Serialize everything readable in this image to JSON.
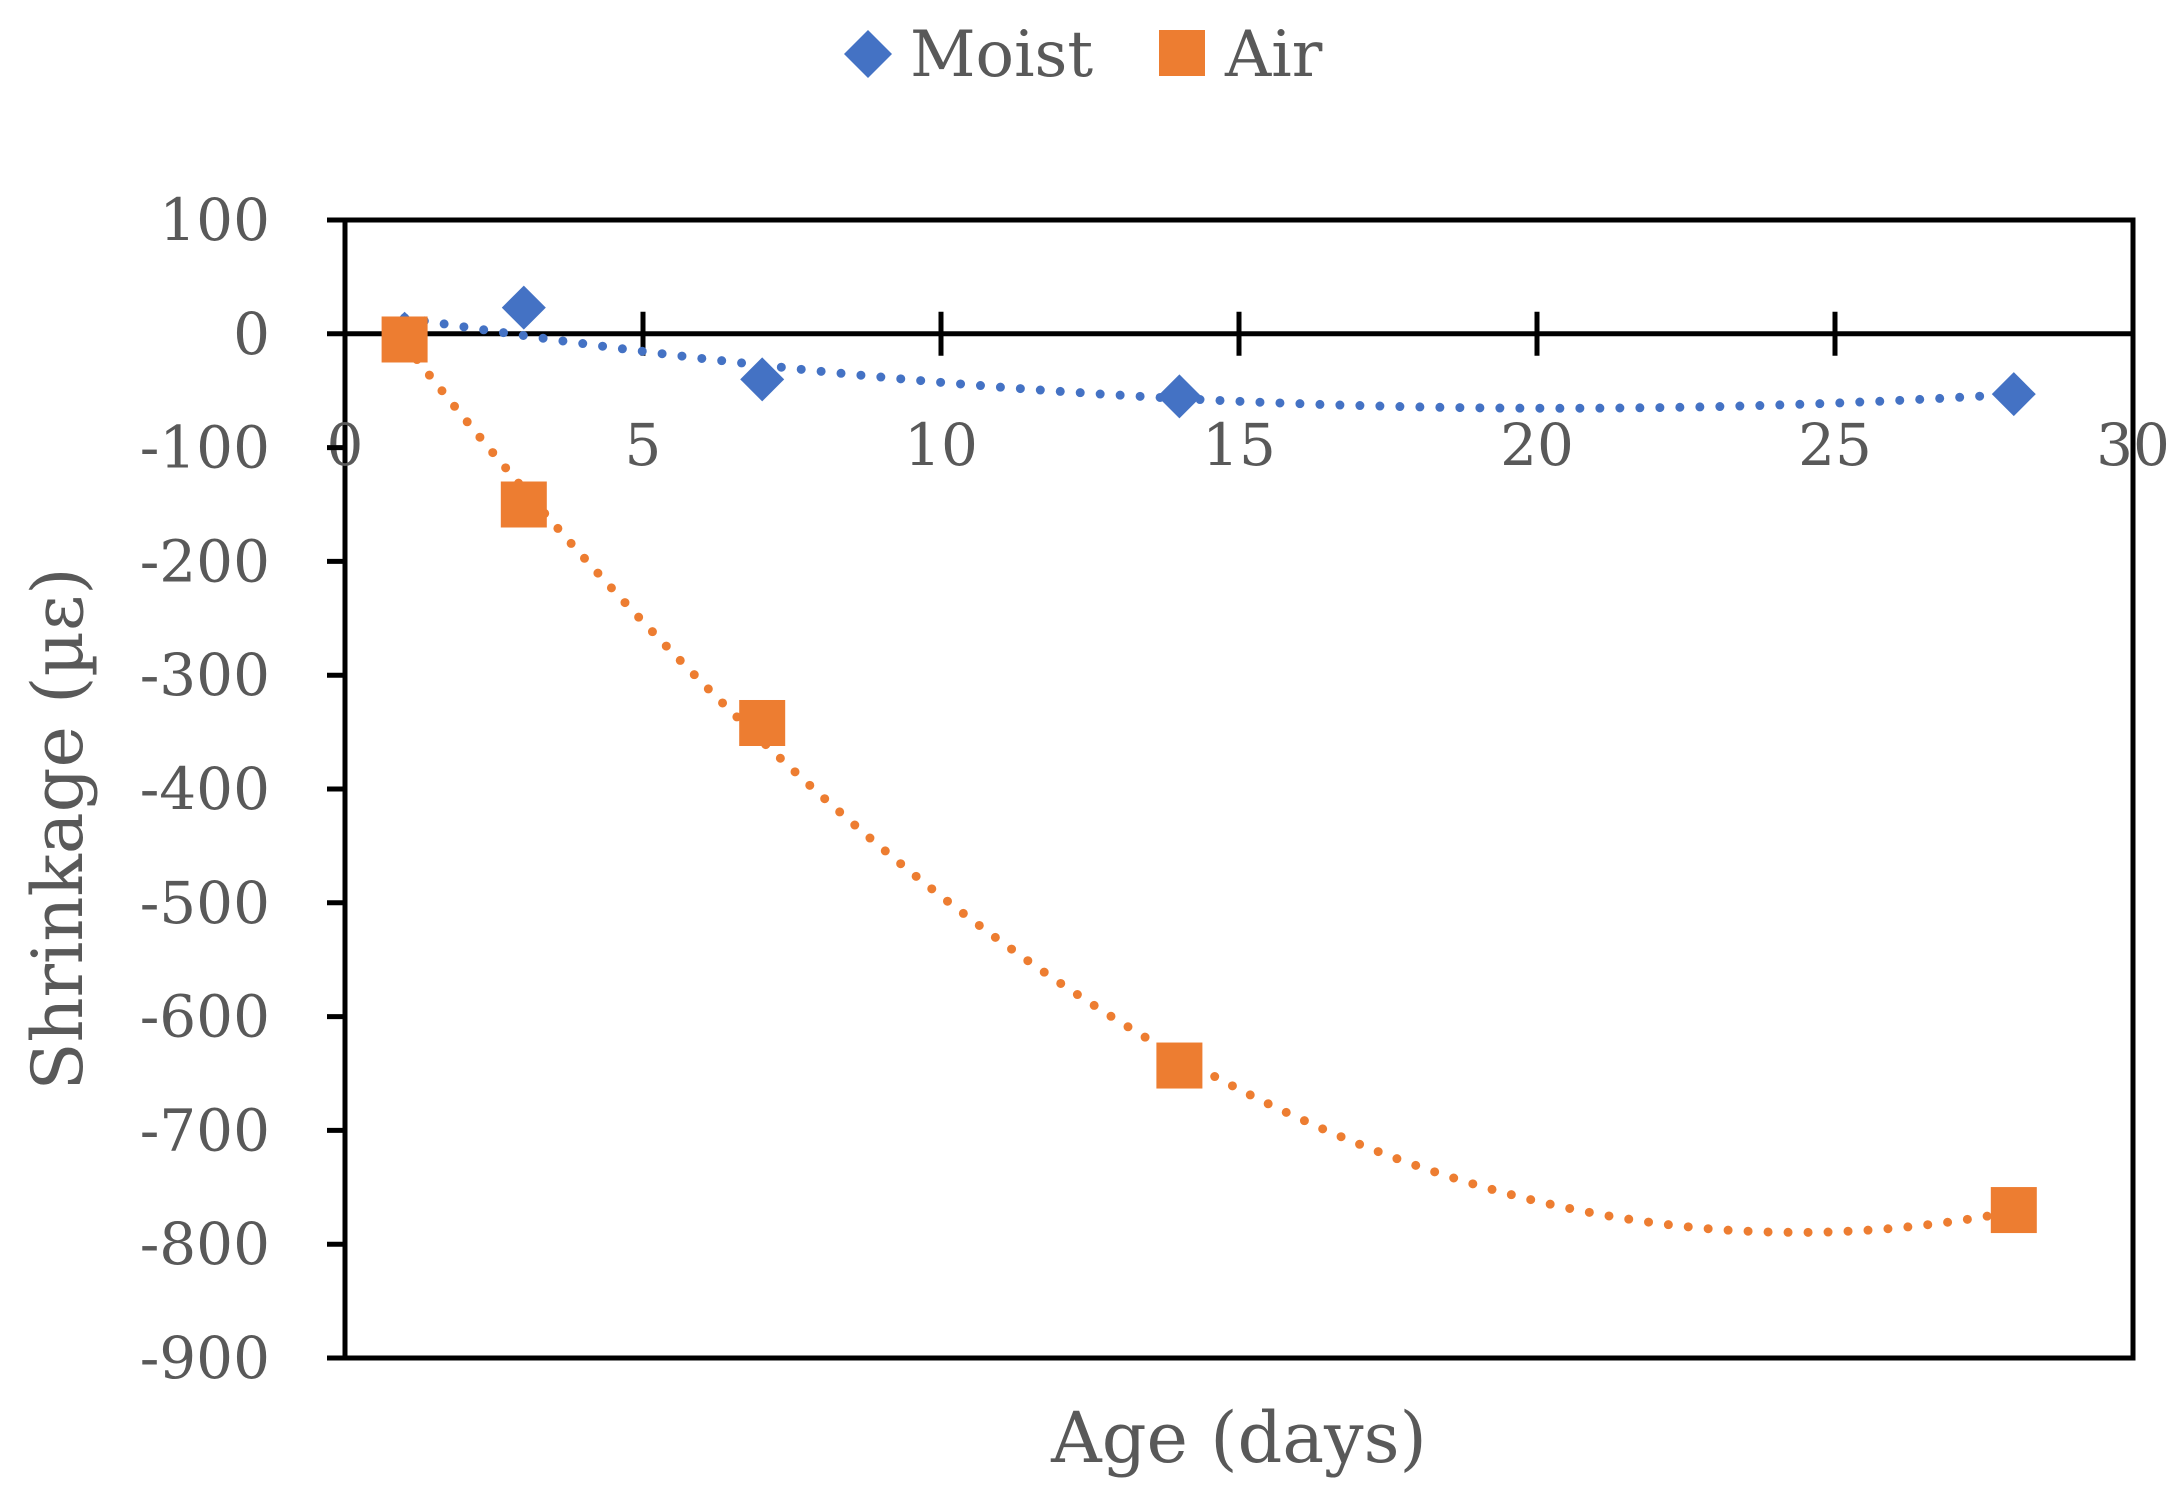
{
  "chart_data": {
    "type": "scatter",
    "title": "",
    "xlabel": "Age (days)",
    "ylabel": "Shrinkage (µε)",
    "xlim": [
      0,
      30
    ],
    "ylim": [
      -900,
      100
    ],
    "xticks": [
      0,
      5,
      10,
      15,
      20,
      25,
      30
    ],
    "yticks": [
      100,
      0,
      -100,
      -200,
      -300,
      -400,
      -500,
      -600,
      -700,
      -800,
      -900
    ],
    "xtick_labels": [
      "0",
      "5",
      "10",
      "15",
      "20",
      "25",
      "30"
    ],
    "ytick_labels": [
      "100",
      "0",
      "-100",
      "-200",
      "-300",
      "-400",
      "-500",
      "-600",
      "-700",
      "-800",
      "-900"
    ],
    "grid": false,
    "legend_position": "top",
    "trendline": "polynomial (dotted)",
    "series": [
      {
        "name": "Moist",
        "color": "#4472C4",
        "marker": "diamond",
        "x": [
          1,
          3,
          7,
          14,
          28
        ],
        "y": [
          0,
          23,
          -40,
          -55,
          -53
        ]
      },
      {
        "name": "Air",
        "color": "#ED7D31",
        "marker": "square",
        "x": [
          1,
          3,
          7,
          14,
          28
        ],
        "y": [
          -5,
          -150,
          -342,
          -643,
          -770
        ]
      }
    ]
  }
}
